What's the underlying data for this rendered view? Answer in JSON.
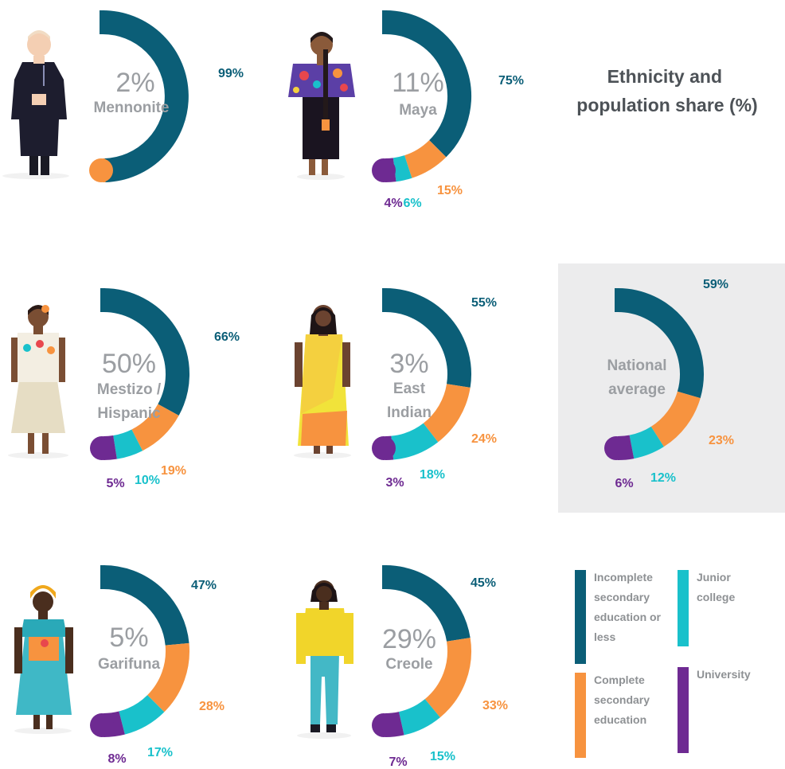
{
  "colors": {
    "incomplete_secondary": "#0b5e77",
    "complete_secondary": "#f7933f",
    "junior_college": "#19c1cb",
    "university": "#6e2a92",
    "panel_bg": "#ececed",
    "skin_light": "#f4cfb3",
    "skin_dark": "#5e3a22",
    "skin_brown": "#8a5a3a"
  },
  "chart_data": {
    "type": "donut",
    "title": "Ethnicity and population share (%)",
    "categories": [
      "Incomplete secondary education or less",
      "Complete secondary education",
      "Junior college",
      "University"
    ],
    "groups": [
      {
        "id": "mennonite",
        "share": "2%",
        "name_lines": [
          "Mennonite"
        ],
        "values": [
          99,
          1,
          0,
          0
        ],
        "labels": [
          "99%",
          "",
          "",
          ""
        ],
        "figure": "figure-mennonite"
      },
      {
        "id": "maya",
        "share": "11%",
        "name_lines": [
          "Maya"
        ],
        "values": [
          75,
          15,
          6,
          4
        ],
        "labels": [
          "75%",
          "15%",
          "6%",
          "4%"
        ],
        "figure": "figure-maya"
      },
      {
        "id": "mestizo",
        "share": "50%",
        "name_lines": [
          "Mestizo /",
          "Hispanic"
        ],
        "values": [
          66,
          19,
          10,
          5
        ],
        "labels": [
          "66%",
          "19%",
          "10%",
          "5%"
        ],
        "figure": "figure-mestizo"
      },
      {
        "id": "east-indian",
        "share": "3%",
        "name_lines": [
          "East",
          "Indian"
        ],
        "values": [
          55,
          24,
          18,
          3
        ],
        "labels": [
          "55%",
          "24%",
          "18%",
          "3%"
        ],
        "figure": "figure-east-indian"
      },
      {
        "id": "national",
        "share": "",
        "name_lines": [
          "National",
          "average"
        ],
        "values": [
          59,
          23,
          12,
          6
        ],
        "labels": [
          "59%",
          "23%",
          "12%",
          "6%"
        ],
        "figure": ""
      },
      {
        "id": "garifuna",
        "share": "5%",
        "name_lines": [
          "Garifuna"
        ],
        "values": [
          47,
          28,
          17,
          8
        ],
        "labels": [
          "47%",
          "28%",
          "17%",
          "8%"
        ],
        "figure": "figure-garifuna"
      },
      {
        "id": "creole",
        "share": "29%",
        "name_lines": [
          "Creole"
        ],
        "values": [
          45,
          33,
          15,
          7
        ],
        "labels": [
          "45%",
          "33%",
          "15%",
          "7%"
        ],
        "figure": "figure-creole"
      }
    ],
    "legend": {
      "placement": "bottom-right",
      "items": [
        {
          "lines": [
            "Incomplete",
            "secondary",
            "education or",
            "less"
          ],
          "color": "#0b5e77"
        },
        {
          "lines": [
            "Junior",
            "college"
          ],
          "color": "#19c1cb"
        },
        {
          "lines": [
            "Complete",
            "secondary",
            "education"
          ],
          "color": "#f7933f"
        },
        {
          "lines": [
            "University"
          ],
          "color": "#6e2a92"
        }
      ]
    }
  }
}
